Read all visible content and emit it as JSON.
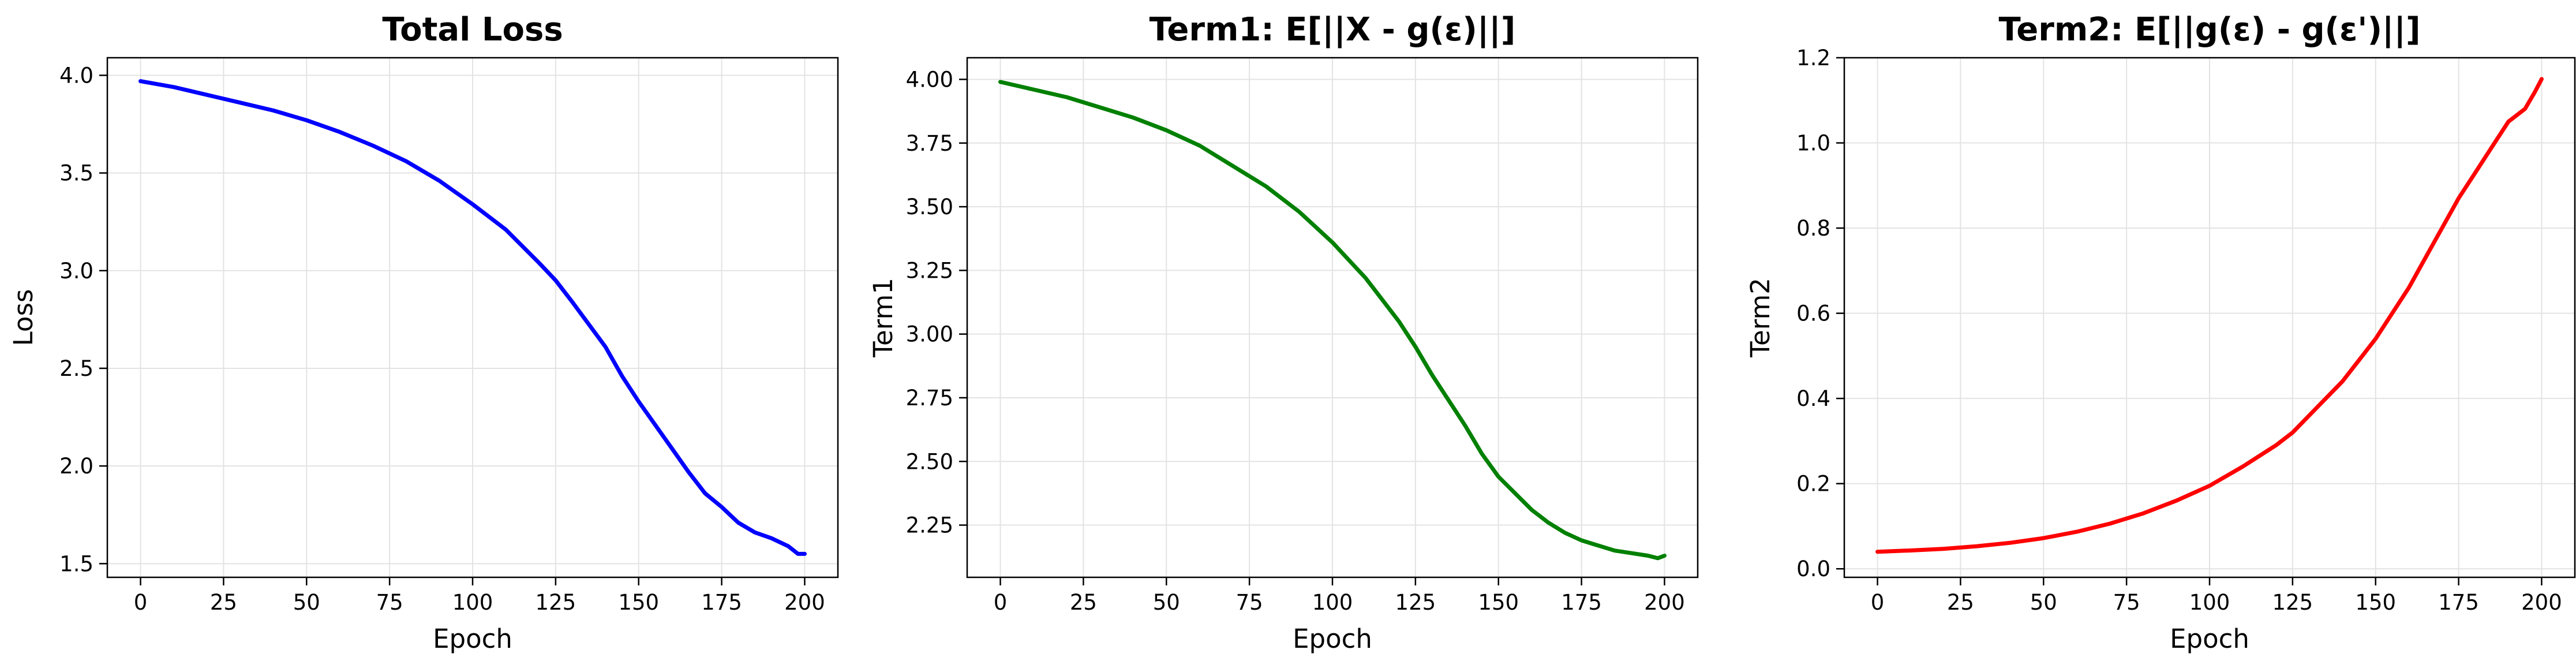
{
  "chart_data": [
    {
      "type": "line",
      "title": "Total Loss",
      "xlabel": "Epoch",
      "ylabel": "Loss",
      "xlim": [
        -10,
        210
      ],
      "ylim": [
        1.43,
        4.09
      ],
      "xticks": [
        0,
        25,
        50,
        75,
        100,
        125,
        150,
        175,
        200
      ],
      "xtick_labels": [
        "0",
        "25",
        "50",
        "75",
        "100",
        "125",
        "150",
        "175",
        "200"
      ],
      "yticks": [
        1.5,
        2.0,
        2.5,
        3.0,
        3.5,
        4.0
      ],
      "ytick_labels": [
        "1.5",
        "2.0",
        "2.5",
        "3.0",
        "3.5",
        "4.0"
      ],
      "grid": true,
      "color": "#0000ff",
      "series": [
        {
          "x": [
            0,
            10,
            20,
            30,
            40,
            50,
            60,
            70,
            80,
            90,
            100,
            110,
            120,
            125,
            130,
            140,
            145,
            150,
            160,
            165,
            170,
            175,
            180,
            185,
            190,
            195,
            198,
            200
          ],
          "y": [
            3.97,
            3.94,
            3.9,
            3.86,
            3.82,
            3.77,
            3.71,
            3.64,
            3.56,
            3.46,
            3.34,
            3.21,
            3.04,
            2.95,
            2.84,
            2.61,
            2.46,
            2.33,
            2.09,
            1.97,
            1.86,
            1.79,
            1.71,
            1.66,
            1.63,
            1.59,
            1.55,
            1.55
          ]
        }
      ]
    },
    {
      "type": "line",
      "title": "Term1: E[||X - g(ε)||]",
      "xlabel": "Epoch",
      "ylabel": "Term1",
      "xlim": [
        -10,
        210
      ],
      "ylim": [
        2.045,
        4.085
      ],
      "xticks": [
        0,
        25,
        50,
        75,
        100,
        125,
        150,
        175,
        200
      ],
      "xtick_labels": [
        "0",
        "25",
        "50",
        "75",
        "100",
        "125",
        "150",
        "175",
        "200"
      ],
      "yticks": [
        2.25,
        2.5,
        2.75,
        3.0,
        3.25,
        3.5,
        3.75,
        4.0
      ],
      "ytick_labels": [
        "2.25",
        "2.50",
        "2.75",
        "3.00",
        "3.25",
        "3.50",
        "3.75",
        "4.00"
      ],
      "grid": true,
      "color": "#008000",
      "series": [
        {
          "x": [
            0,
            10,
            20,
            30,
            40,
            50,
            60,
            70,
            80,
            90,
            100,
            110,
            120,
            125,
            130,
            140,
            145,
            150,
            160,
            165,
            170,
            175,
            180,
            185,
            190,
            195,
            198,
            200
          ],
          "y": [
            3.99,
            3.96,
            3.93,
            3.89,
            3.85,
            3.8,
            3.74,
            3.66,
            3.58,
            3.48,
            3.36,
            3.22,
            3.05,
            2.95,
            2.84,
            2.64,
            2.53,
            2.44,
            2.31,
            2.26,
            2.22,
            2.19,
            2.17,
            2.15,
            2.14,
            2.13,
            2.12,
            2.13
          ]
        }
      ]
    },
    {
      "type": "line",
      "title": "Term2: E[||g(ε) - g(ε')||]",
      "xlabel": "Epoch",
      "ylabel": "Term2",
      "xlim": [
        -10,
        210
      ],
      "ylim": [
        -0.02,
        1.2
      ],
      "xticks": [
        0,
        25,
        50,
        75,
        100,
        125,
        150,
        175,
        200
      ],
      "xtick_labels": [
        "0",
        "25",
        "50",
        "75",
        "100",
        "125",
        "150",
        "175",
        "200"
      ],
      "yticks": [
        0.0,
        0.2,
        0.4,
        0.6,
        0.8,
        1.0,
        1.2
      ],
      "ytick_labels": [
        "0.0",
        "0.2",
        "0.4",
        "0.6",
        "0.8",
        "1.0",
        "1.2"
      ],
      "grid": true,
      "color": "#ff0000",
      "series": [
        {
          "x": [
            0,
            10,
            20,
            30,
            40,
            50,
            60,
            70,
            80,
            90,
            100,
            110,
            120,
            125,
            130,
            140,
            145,
            150,
            160,
            165,
            170,
            175,
            180,
            185,
            190,
            195,
            198,
            200
          ],
          "y": [
            0.04,
            0.043,
            0.047,
            0.053,
            0.061,
            0.072,
            0.087,
            0.106,
            0.13,
            0.16,
            0.195,
            0.24,
            0.29,
            0.32,
            0.36,
            0.44,
            0.49,
            0.54,
            0.66,
            0.73,
            0.8,
            0.87,
            0.93,
            0.99,
            1.05,
            1.08,
            1.12,
            1.15
          ]
        }
      ]
    }
  ]
}
